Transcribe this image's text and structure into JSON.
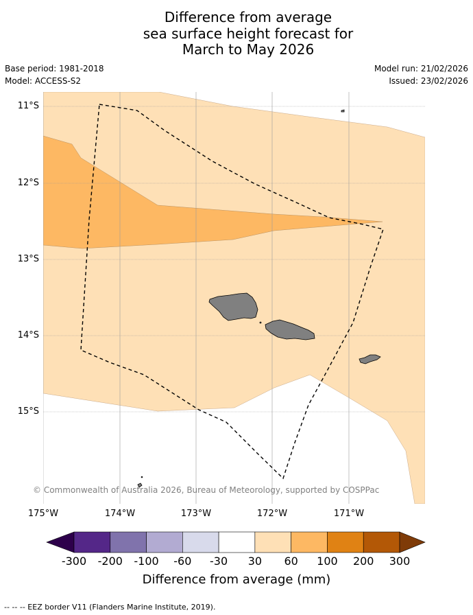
{
  "title": {
    "line1": "Difference from average",
    "line2": "sea surface height forecast for",
    "line3": "March to May 2026"
  },
  "meta": {
    "base_period": "Base period: 1981-2018",
    "model": "Model: ACCESS-S2",
    "model_run": "Model run: 21/02/2026",
    "issued": "Issued: 23/02/2026"
  },
  "axes": {
    "lat_labels": [
      "11°S",
      "12°S",
      "13°S",
      "14°S",
      "15°S"
    ],
    "lon_labels": [
      "175°W",
      "174°W",
      "173°W",
      "172°W",
      "171°W"
    ]
  },
  "copyright": "© Commonwealth of Australia 2026, Bureau of Meteorology, supported by COSPPac",
  "colorbar": {
    "title": "Difference from average (mm)",
    "tick_labels": [
      "-300",
      "-200",
      "-100",
      "-60",
      "-30",
      "30",
      "60",
      "100",
      "200",
      "300"
    ],
    "colors": {
      "below": "#2d004b",
      "bins": [
        "#542788",
        "#8073ac",
        "#b2abd2",
        "#d8daeb",
        "#ffffff",
        "#fee0b6",
        "#fdb863",
        "#e08214",
        "#b35806"
      ],
      "above": "#7f3b08"
    }
  },
  "map_colors": {
    "band_30_60": "#fee0b6",
    "band_60_100": "#fdb863",
    "land": "#808080"
  },
  "footer": {
    "legend_text": "--  --  -- EEZ border V11 (Flanders Marine Institute, 2019)."
  }
}
